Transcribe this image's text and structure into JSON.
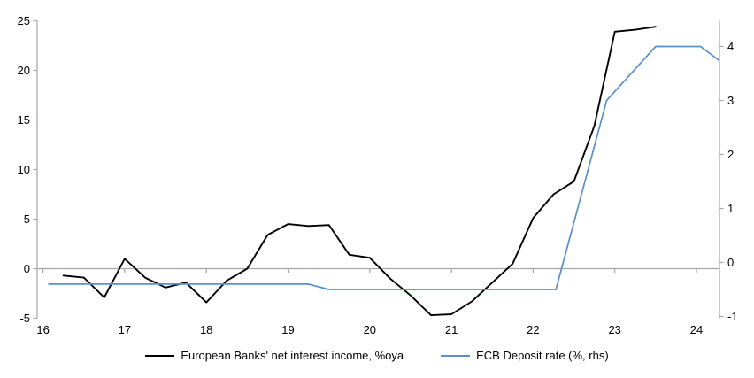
{
  "chart_data": {
    "type": "line",
    "title": "",
    "x_axis": {
      "min": 16,
      "max": 24.28,
      "ticks": [
        16,
        17,
        18,
        19,
        20,
        21,
        22,
        23,
        24
      ]
    },
    "left_axis": {
      "min": -5,
      "max": 25,
      "ticks": [
        25,
        20,
        15,
        10,
        5,
        0,
        -5
      ]
    },
    "right_axis": {
      "min": -1.03,
      "max": 4.47,
      "ticks": [
        4,
        3,
        2,
        1,
        0,
        -1
      ]
    },
    "axis_color": "#a6a6a6",
    "grid": "zero-line-only",
    "legend_position": "bottom",
    "series": [
      {
        "name": "European Banks' net interest income, %oya",
        "color": "#000000",
        "axis": "left",
        "points": [
          [
            16.25,
            -0.7
          ],
          [
            16.5,
            -0.9
          ],
          [
            16.75,
            -2.9
          ],
          [
            17.0,
            1.0
          ],
          [
            17.25,
            -0.9
          ],
          [
            17.5,
            -1.9
          ],
          [
            17.75,
            -1.4
          ],
          [
            18.0,
            -3.4
          ],
          [
            18.25,
            -1.2
          ],
          [
            18.5,
            0.0
          ],
          [
            18.75,
            3.4
          ],
          [
            19.0,
            4.5
          ],
          [
            19.25,
            4.3
          ],
          [
            19.5,
            4.4
          ],
          [
            19.75,
            1.4
          ],
          [
            20.0,
            1.1
          ],
          [
            20.25,
            -1.0
          ],
          [
            20.5,
            -2.7
          ],
          [
            20.75,
            -4.7
          ],
          [
            21.0,
            -4.6
          ],
          [
            21.25,
            -3.3
          ],
          [
            21.5,
            -1.4
          ],
          [
            21.75,
            0.5
          ],
          [
            22.0,
            5.1
          ],
          [
            22.25,
            7.5
          ],
          [
            22.5,
            8.8
          ],
          [
            22.75,
            14.4
          ],
          [
            23.0,
            23.9
          ],
          [
            23.25,
            24.1
          ],
          [
            23.5,
            24.4
          ]
        ]
      },
      {
        "name": "ECB Deposit rate (%, rhs)",
        "color": "#5b8fc9",
        "axis": "right",
        "points": [
          [
            16.07,
            -0.4
          ],
          [
            19.25,
            -0.4
          ],
          [
            19.5,
            -0.5
          ],
          [
            22.28,
            -0.5
          ],
          [
            22.9,
            3.0
          ],
          [
            23.05,
            3.25
          ],
          [
            23.5,
            4.0
          ],
          [
            24.05,
            4.0
          ],
          [
            24.27,
            3.75
          ]
        ]
      }
    ]
  }
}
